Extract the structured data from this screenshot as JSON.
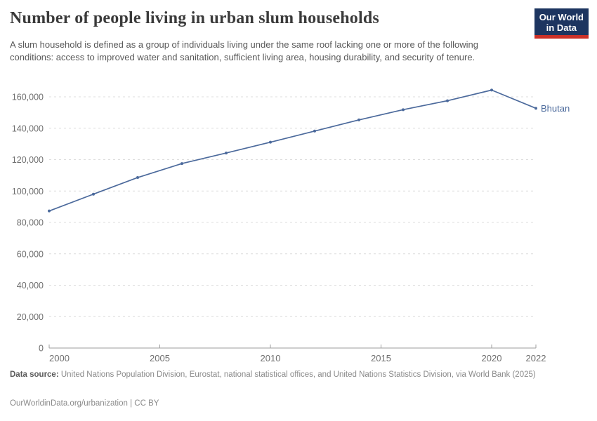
{
  "header": {
    "title": "Number of people living in urban slum households",
    "subtitle": "A slum household is defined as a group of individuals living under the same roof lacking one or more of the following conditions: access to improved water and sanitation, sufficient living area, housing durability, and security of tenure.",
    "logo": {
      "line1": "Our World",
      "line2": "in Data",
      "bg_color": "#1d3560",
      "bar_color": "#cc3128"
    }
  },
  "chart_data": {
    "type": "line",
    "title": "Number of people living in urban slum households",
    "xlabel": "",
    "ylabel": "",
    "xlim": [
      2000,
      2022
    ],
    "ylim": [
      0,
      160000
    ],
    "grid": "horizontal-dashed",
    "legend_position": "end-of-line-label",
    "x_ticks": [
      2000,
      2005,
      2010,
      2015,
      2020,
      2022
    ],
    "x_tick_labels": [
      "2000",
      "2005",
      "2010",
      "2015",
      "2020",
      "2022"
    ],
    "y_ticks": [
      0,
      20000,
      40000,
      60000,
      80000,
      100000,
      120000,
      140000,
      160000
    ],
    "y_tick_labels": [
      "0",
      "20,000",
      "40,000",
      "60,000",
      "80,000",
      "100,000",
      "120,000",
      "140,000",
      "160,000"
    ],
    "series": [
      {
        "name": "Bhutan",
        "color": "#4C6A9C",
        "x": [
          2000,
          2002,
          2004,
          2006,
          2008,
          2010,
          2012,
          2014,
          2016,
          2018,
          2020,
          2022
        ],
        "values": [
          87300,
          98000,
          108600,
          117500,
          124200,
          131100,
          138200,
          145300,
          151800,
          157500,
          164300,
          152700
        ]
      }
    ]
  },
  "footer": {
    "source_label": "Data source:",
    "source_text": " United Nations Population Division, Eurostat, national statistical offices, and United Nations Statistics Division, via World Bank (2025)",
    "link_text": "OurWorldinData.org/urbanization",
    "separator": " | ",
    "license": "CC BY"
  },
  "colors": {
    "accent_line": "#4C6A9C",
    "gridline": "#dcdcdc",
    "axis": "#9e9e9e",
    "tick_text": "#6e6e6e",
    "title_text": "#3a3a3a",
    "subtitle_text": "#595959",
    "footer_text": "#8a8a8a"
  }
}
